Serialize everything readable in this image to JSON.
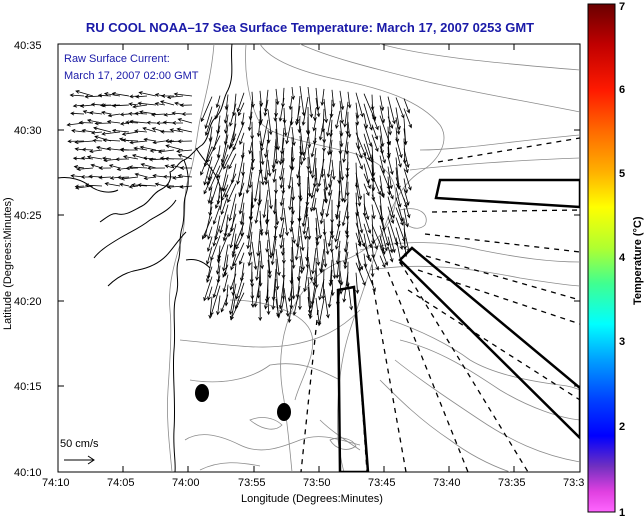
{
  "title": "RU COOL  NOAA–17  Sea Surface Temperature:  March 17, 2007 0253 GMT",
  "annotation": {
    "line1": "Raw Surface Current:",
    "line2": "March 17, 2007 02:00 GMT"
  },
  "scale_label": "50 cm/s",
  "axes": {
    "xlabel": "Longitude (Degrees:Minutes)",
    "ylabel": "Latitude (Degrees:Minutes)",
    "xticks": [
      "74:10",
      "74:05",
      "74:00",
      "73:55",
      "73:50",
      "73:45",
      "73:40",
      "73:35",
      "73:3"
    ],
    "yticks": [
      "40:35",
      "40:30",
      "40:25",
      "40:20",
      "40:15",
      "40:10"
    ]
  },
  "colorbar": {
    "label": "Temperature (°C)",
    "ticks": [
      "7",
      "6",
      "5",
      "4",
      "3",
      "2",
      "1"
    ],
    "colors": [
      "#7a0000",
      "#ff0000",
      "#ff8000",
      "#ffff00",
      "#00ffff",
      "#0000ff",
      "#ff66ff"
    ]
  },
  "colors": {
    "title": "#1a1aa8",
    "annotation": "#1a1aa8",
    "coast": "#000000",
    "isobath": "#808080"
  },
  "icons": [
    "scale-arrow-icon",
    "station-marker-icon"
  ]
}
